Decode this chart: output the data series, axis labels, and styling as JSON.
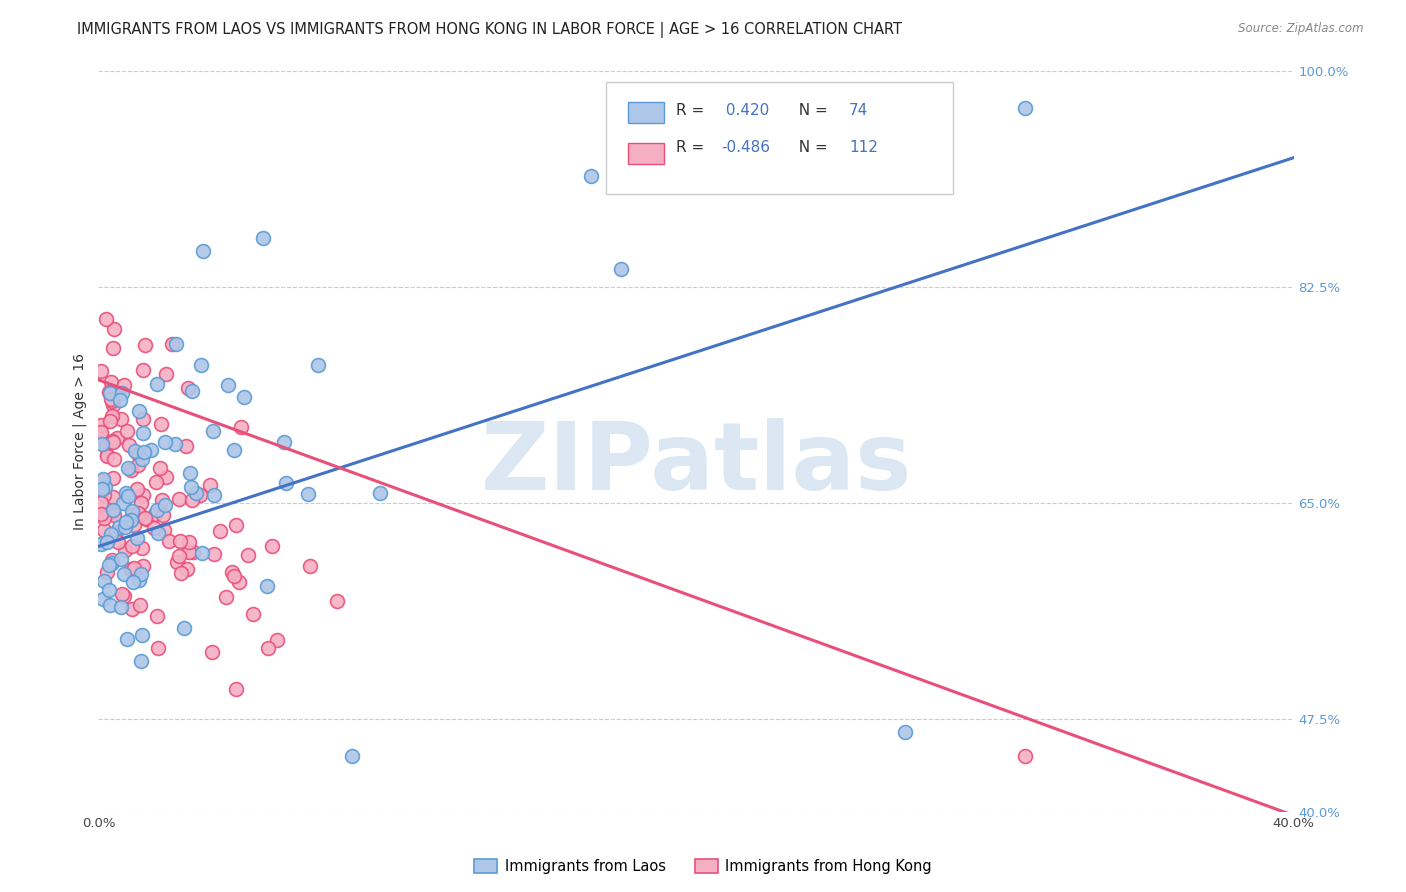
{
  "title": "IMMIGRANTS FROM LAOS VS IMMIGRANTS FROM HONG KONG IN LABOR FORCE | AGE > 16 CORRELATION CHART",
  "source": "Source: ZipAtlas.com",
  "ylabel": "In Labor Force | Age > 16",
  "xmin": 0.0,
  "xmax": 0.4,
  "ymin": 0.4,
  "ymax": 1.0,
  "ytick_positions": [
    0.4,
    0.475,
    0.65,
    0.825,
    1.0
  ],
  "ytick_labels": [
    "40.0%",
    "47.5%",
    "65.0%",
    "82.5%",
    "100.0%"
  ],
  "xtick_positions": [
    0.0,
    0.05,
    0.1,
    0.15,
    0.2,
    0.25,
    0.3,
    0.35,
    0.4
  ],
  "xtick_labels": [
    "0.0%",
    "",
    "",
    "",
    "",
    "",
    "",
    "",
    "40.0%"
  ],
  "laos_fill_color": "#aec6e8",
  "laos_edge_color": "#5b9bd5",
  "hk_fill_color": "#f4afc4",
  "hk_edge_color": "#e8507a",
  "laos_line_color": "#4472c4",
  "hk_line_color": "#e8507a",
  "laos_R": 0.42,
  "laos_N": 74,
  "hk_R": -0.486,
  "hk_N": 112,
  "laos_line_x0": 0.0,
  "laos_line_x1": 0.4,
  "laos_line_y0": 0.615,
  "laos_line_y1": 0.93,
  "hk_line_x0": 0.0,
  "hk_line_x1": 0.4,
  "hk_line_y0": 0.75,
  "hk_line_y1": 0.397,
  "watermark_text": "ZIPatlas",
  "watermark_color": "#c5d8ee",
  "bg_color": "#ffffff",
  "grid_color": "#cccccc",
  "right_tick_color": "#5b9bd5",
  "title_color": "#222222",
  "source_color": "#888888",
  "legend_text_color": "#222222",
  "legend_value_color": "#4472c4",
  "marker_size": 100,
  "marker_linewidth": 1.2
}
